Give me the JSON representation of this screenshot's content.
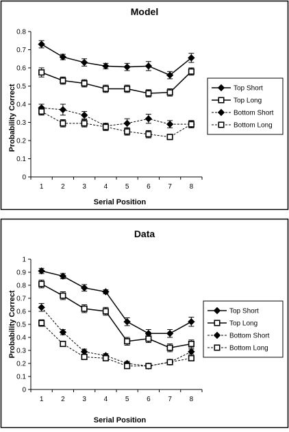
{
  "chart_data": [
    {
      "type": "line",
      "title": "Model",
      "xlabel": "Serial Position",
      "ylabel": "Probability Correct",
      "x": [
        1,
        2,
        3,
        4,
        5,
        6,
        7,
        8
      ],
      "ylim": [
        0,
        0.8
      ],
      "yticks": [
        "0",
        "0.1",
        "0.2",
        "0.3",
        "0.4",
        "0.5",
        "0.6",
        "0.7",
        "0.8"
      ],
      "grid": false,
      "legend_position": "right",
      "series": [
        {
          "name": "Top Short",
          "marker": "diamond-filled",
          "line": "solid",
          "values": [
            0.73,
            0.66,
            0.63,
            0.61,
            0.605,
            0.61,
            0.56,
            0.655
          ],
          "errors": [
            0.02,
            0.015,
            0.02,
            0.015,
            0.02,
            0.025,
            0.02,
            0.025
          ]
        },
        {
          "name": "Top Long",
          "marker": "square-open",
          "line": "solid",
          "values": [
            0.575,
            0.53,
            0.515,
            0.485,
            0.485,
            0.46,
            0.465,
            0.58
          ],
          "errors": [
            0.025,
            0.02,
            0.02,
            0.02,
            0.02,
            0.02,
            0.02,
            0.02
          ]
        },
        {
          "name": "Bottom Short",
          "marker": "diamond-filled",
          "line": "dotted",
          "values": [
            0.38,
            0.37,
            0.34,
            0.28,
            0.295,
            0.32,
            0.29,
            0.29
          ],
          "errors": [
            0.02,
            0.03,
            0.02,
            0.015,
            0.025,
            0.025,
            0.02,
            0.02
          ]
        },
        {
          "name": "Bottom Long",
          "marker": "square-open",
          "line": "dotted",
          "values": [
            0.36,
            0.295,
            0.295,
            0.275,
            0.25,
            0.235,
            0.22,
            0.29
          ],
          "errors": [
            0.02,
            0.02,
            0.02,
            0.02,
            0.02,
            0.02,
            0.015,
            0.02
          ]
        }
      ]
    },
    {
      "type": "line",
      "title": "Data",
      "xlabel": "Serial Position",
      "ylabel": "Probability Correct",
      "x": [
        1,
        2,
        3,
        4,
        5,
        6,
        7,
        8
      ],
      "ylim": [
        0,
        1
      ],
      "yticks": [
        "0",
        "0.1",
        "0.2",
        "0.3",
        "0.4",
        "0.5",
        "0.6",
        "0.7",
        "0.8",
        "0.9",
        "1"
      ],
      "grid": false,
      "legend_position": "right",
      "series": [
        {
          "name": "Top Short",
          "marker": "diamond-filled",
          "line": "solid",
          "values": [
            0.91,
            0.87,
            0.78,
            0.75,
            0.52,
            0.43,
            0.43,
            0.52
          ],
          "errors": [
            0.02,
            0.02,
            0.025,
            0.015,
            0.03,
            0.03,
            0.03,
            0.035
          ]
        },
        {
          "name": "Top Long",
          "marker": "square-open",
          "line": "solid",
          "values": [
            0.81,
            0.72,
            0.62,
            0.6,
            0.37,
            0.39,
            0.32,
            0.35
          ],
          "errors": [
            0.03,
            0.03,
            0.03,
            0.03,
            0.03,
            0.03,
            0.03,
            0.03
          ]
        },
        {
          "name": "Bottom Short",
          "marker": "diamond-filled",
          "line": "dotted",
          "values": [
            0.63,
            0.44,
            0.29,
            0.26,
            0.2,
            0.18,
            0.21,
            0.29
          ],
          "errors": [
            0.03,
            0.02,
            0.02,
            0.015,
            0.015,
            0.01,
            0.015,
            0.02
          ]
        },
        {
          "name": "Bottom Long",
          "marker": "square-open",
          "line": "dotted",
          "values": [
            0.51,
            0.35,
            0.25,
            0.24,
            0.18,
            0.18,
            0.21,
            0.24
          ],
          "errors": [
            0.025,
            0.02,
            0.02,
            0.015,
            0.015,
            0.01,
            0.015,
            0.02
          ]
        }
      ]
    }
  ]
}
